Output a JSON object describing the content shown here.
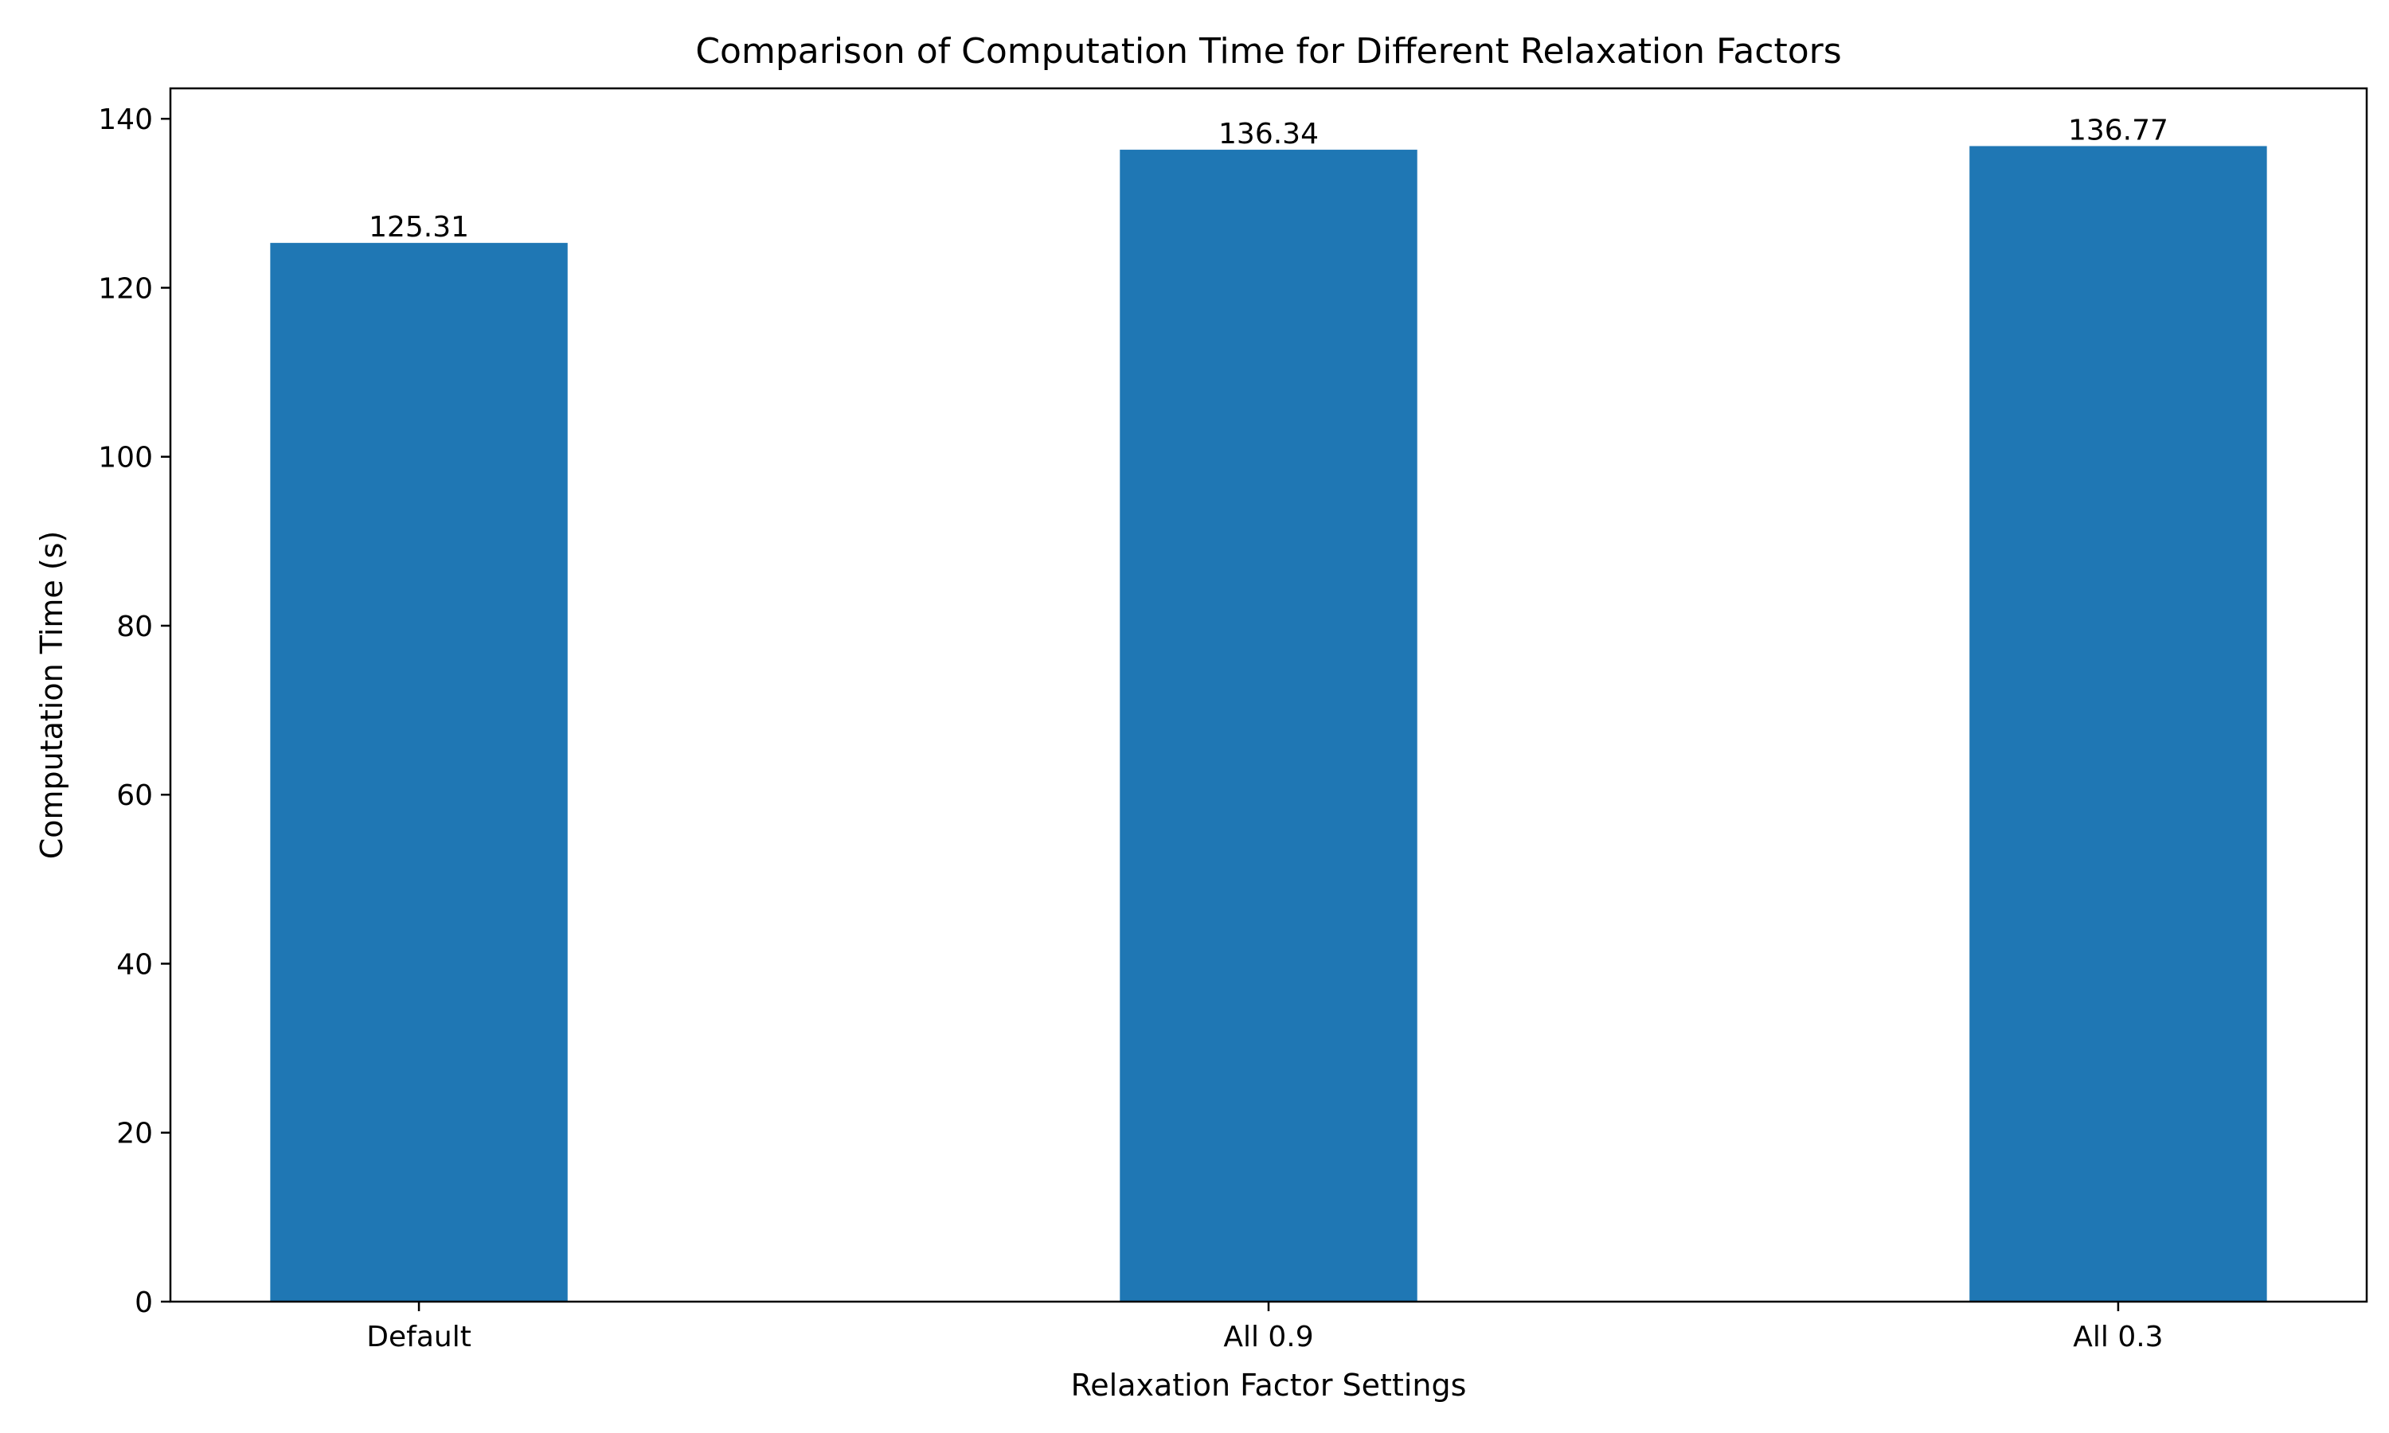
{
  "chart_data": {
    "type": "bar",
    "title": "Comparison of Computation Time for Different Relaxation Factors",
    "xlabel": "Relaxation Factor Settings",
    "ylabel": "Computation Time (s)",
    "categories": [
      "Default",
      "All 0.9",
      "All 0.3"
    ],
    "values": [
      125.31,
      136.34,
      136.77
    ],
    "value_labels": [
      "125.31",
      "136.34",
      "136.77"
    ],
    "ylim": [
      0,
      143.6
    ],
    "yticks": [
      0,
      20,
      40,
      60,
      80,
      100,
      120,
      140
    ],
    "grid": false,
    "legend": "none",
    "bar_color": "#1f77b4"
  }
}
